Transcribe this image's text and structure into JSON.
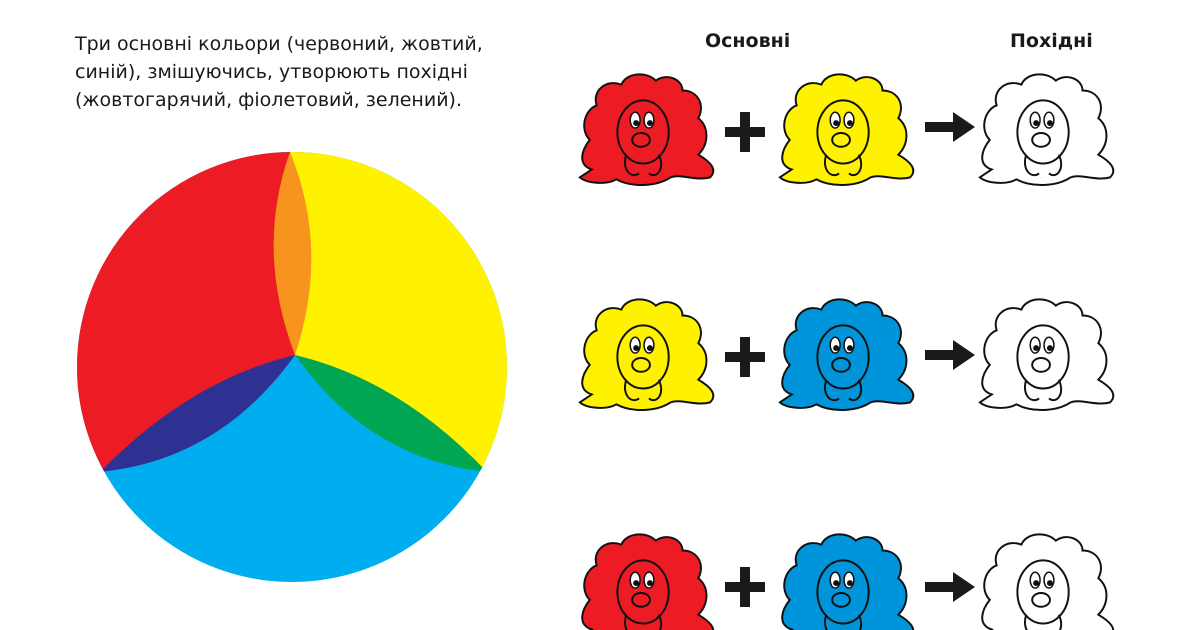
{
  "intro": [
    "Три основні кольори (червоний, жовтий,",
    "синій), змішуючись, утворюють похідні",
    "(жовтогарячий, фіолетовий, зелений)."
  ],
  "headers": {
    "primary": "Основні",
    "derived": "Похідні"
  }
}
